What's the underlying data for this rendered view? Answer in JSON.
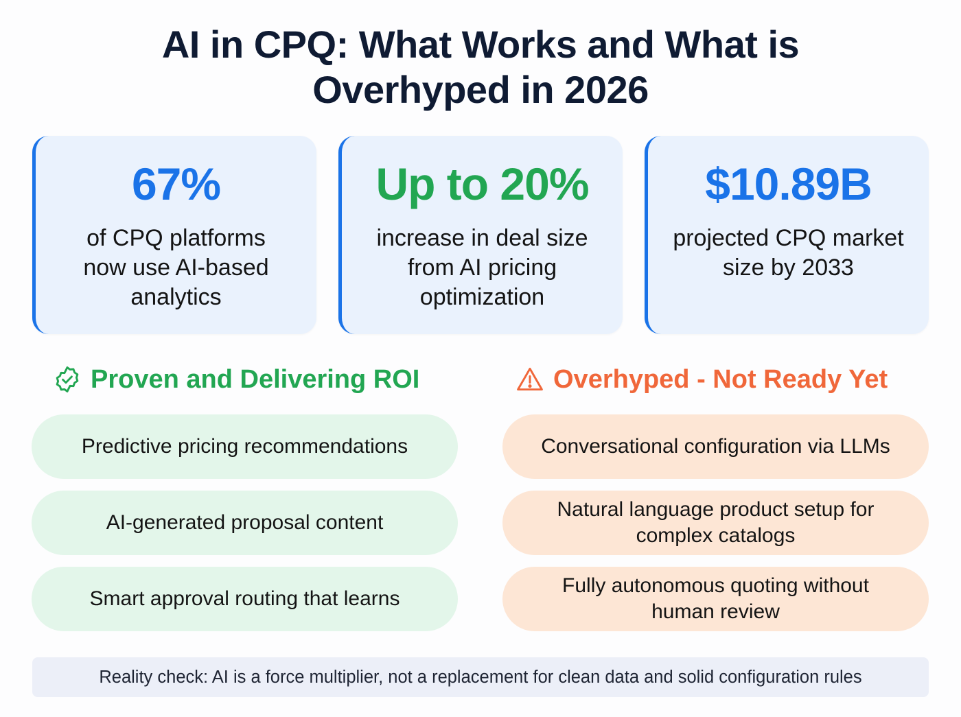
{
  "title": {
    "line1": "AI in CPQ: What Works and What is",
    "line2": "Overhyped in 2026"
  },
  "colors": {
    "blue": "#1a73e8",
    "green": "#22a652",
    "orange": "#f0673a"
  },
  "stats": [
    {
      "value": "67%",
      "description": "of CPQ platforms now use AI-based analytics",
      "color": "#1a73e8"
    },
    {
      "value": "Up to 20%",
      "description": "increase in deal size from AI pricing optimization",
      "color": "#22a652"
    },
    {
      "value": "$10.89B",
      "description": "projected CPQ market size by 2033",
      "color": "#1a73e8"
    }
  ],
  "proven": {
    "icon": "badge-check-icon",
    "heading": "Proven and Delivering ROI",
    "items": [
      "Predictive pricing recommendations",
      "AI-generated proposal content",
      "Smart approval routing that learns"
    ]
  },
  "overhyped": {
    "icon": "warning-triangle-icon",
    "heading": "Overhyped - Not Ready Yet",
    "items": [
      "Conversational configuration via LLMs",
      "Natural language product setup for complex catalogs",
      "Fully autonomous quoting without human review"
    ]
  },
  "footer": "Reality check: AI is a force multiplier, not a replacement for clean data and solid configuration rules"
}
